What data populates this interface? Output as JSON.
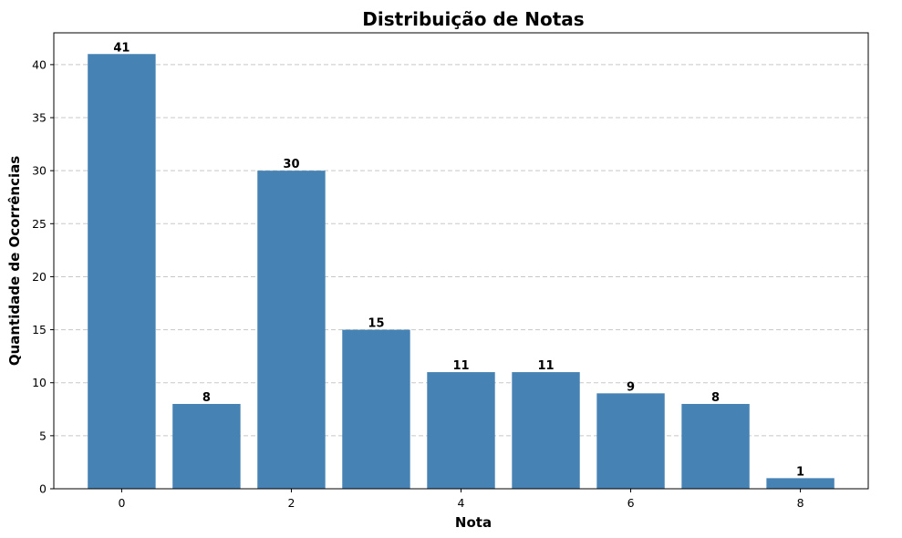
{
  "chart_data": {
    "type": "bar",
    "title": "Distribuição de Notas",
    "xlabel": "Nota",
    "ylabel": "Quantidade de Ocorrências",
    "x": [
      0,
      1,
      2,
      3,
      4,
      5,
      6,
      7,
      8
    ],
    "values": [
      41,
      8,
      30,
      15,
      11,
      11,
      9,
      8,
      1
    ],
    "xlim": [
      -0.8,
      8.8
    ],
    "ylim": [
      0,
      43
    ],
    "xticks": [
      0,
      2,
      4,
      6,
      8
    ],
    "yticks": [
      0,
      5,
      10,
      15,
      20,
      25,
      30,
      35,
      40
    ],
    "bar_color": "#4682b4",
    "grid": "y-dashed",
    "legend": "none"
  }
}
